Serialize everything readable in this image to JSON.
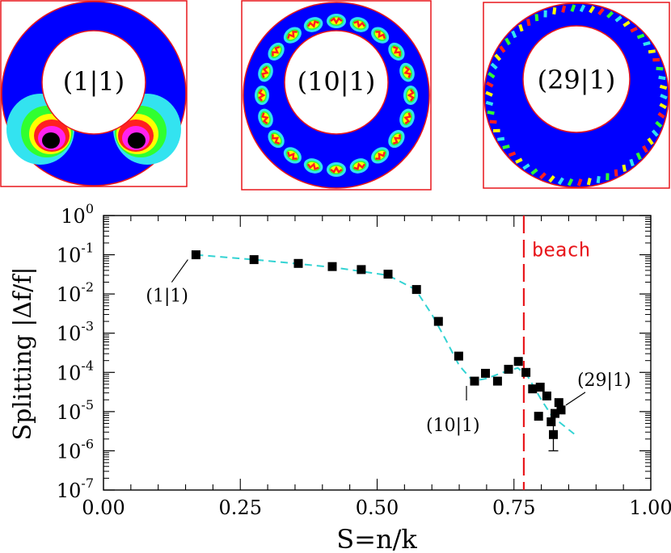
{
  "panels": [
    {
      "label": "(1|1)",
      "mode": "1|1"
    },
    {
      "label": "(10|1)",
      "mode": "10|1"
    },
    {
      "label": "(29|1)",
      "mode": "29|1"
    }
  ],
  "colors": {
    "field": "#0000ff",
    "frame": "#e8171c",
    "fit_line": "#33d3d3",
    "beach_line": "#e8171c",
    "points": "#000000"
  },
  "chart_data": {
    "type": "scatter",
    "xlabel": "S=n/k",
    "ylabel": "Splitting |Δf/f|",
    "xlim": [
      0.0,
      1.0
    ],
    "yscale": "log",
    "ylim_exp": [
      -7,
      0
    ],
    "xticks": [
      "0.00",
      "0.25",
      "0.50",
      "0.75",
      "1.00"
    ],
    "xtick_values": [
      0.0,
      0.25,
      0.5,
      0.75,
      1.0
    ],
    "yticks": [
      {
        "base": "10",
        "exp": "0"
      },
      {
        "base": "10",
        "exp": "-1"
      },
      {
        "base": "10",
        "exp": "-2"
      },
      {
        "base": "10",
        "exp": "-3"
      },
      {
        "base": "10",
        "exp": "-4"
      },
      {
        "base": "10",
        "exp": "-5"
      },
      {
        "base": "10",
        "exp": "-6"
      },
      {
        "base": "10",
        "exp": "-7"
      }
    ],
    "points": [
      {
        "x": 0.169,
        "y": 0.1
      },
      {
        "x": 0.275,
        "y": 0.075
      },
      {
        "x": 0.356,
        "y": 0.06
      },
      {
        "x": 0.418,
        "y": 0.05
      },
      {
        "x": 0.471,
        "y": 0.042
      },
      {
        "x": 0.52,
        "y": 0.032
      },
      {
        "x": 0.572,
        "y": 0.013
      },
      {
        "x": 0.612,
        "y": 0.002
      },
      {
        "x": 0.649,
        "y": 0.00026
      },
      {
        "x": 0.678,
        "y": 6e-05
      },
      {
        "x": 0.698,
        "y": 9.5e-05
      },
      {
        "x": 0.72,
        "y": 6e-05
      },
      {
        "x": 0.74,
        "y": 0.00012
      },
      {
        "x": 0.758,
        "y": 0.00019
      },
      {
        "x": 0.772,
        "y": 0.0001
      },
      {
        "x": 0.784,
        "y": 3.8e-05
      },
      {
        "x": 0.798,
        "y": 4.2e-05
      },
      {
        "x": 0.795,
        "y": 7.6e-06
      },
      {
        "x": 0.81,
        "y": 2.5e-05
      },
      {
        "x": 0.818,
        "y": 5.5e-06
      },
      {
        "x": 0.822,
        "y": 2.6e-06
      },
      {
        "x": 0.825,
        "y": 9e-06
      },
      {
        "x": 0.832,
        "y": 1.7e-05
      },
      {
        "x": 0.836,
        "y": 1.1e-05
      }
    ],
    "error_bars": [
      {
        "x": 0.822,
        "y_low": 1e-06,
        "y_high": 5.5e-06
      }
    ],
    "fit_curve": [
      {
        "x": 0.169,
        "y": 0.1
      },
      {
        "x": 0.3,
        "y": 0.07
      },
      {
        "x": 0.42,
        "y": 0.048
      },
      {
        "x": 0.52,
        "y": 0.03
      },
      {
        "x": 0.57,
        "y": 0.013
      },
      {
        "x": 0.6,
        "y": 0.003
      },
      {
        "x": 0.625,
        "y": 0.0007
      },
      {
        "x": 0.65,
        "y": 0.00015
      },
      {
        "x": 0.675,
        "y": 6e-05
      },
      {
        "x": 0.7,
        "y": 7e-05
      },
      {
        "x": 0.73,
        "y": 0.0001
      },
      {
        "x": 0.757,
        "y": 0.00013
      },
      {
        "x": 0.775,
        "y": 8e-05
      },
      {
        "x": 0.8,
        "y": 2e-05
      },
      {
        "x": 0.82,
        "y": 7.5e-06
      },
      {
        "x": 0.86,
        "y": 2.7e-06
      }
    ],
    "beach_x": 0.768,
    "beach_label": "beach",
    "annotations": [
      {
        "text": "(1|1)",
        "x": 0.169,
        "y": 0.1
      },
      {
        "text": "(10|1)",
        "x": 0.678,
        "y": 6e-05
      },
      {
        "text": "(29|1)",
        "x": 0.836,
        "y": 1.1e-05
      }
    ]
  }
}
